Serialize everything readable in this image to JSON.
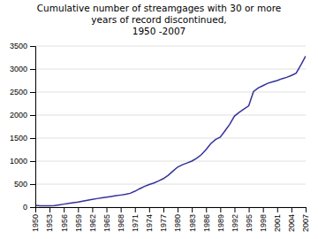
{
  "chart_data": {
    "type": "line",
    "title": "Cumulative number of streamgages with 30 or more\nyears of record discontinued,\n1950 -2007",
    "x": [
      1950,
      1951,
      1952,
      1953,
      1954,
      1955,
      1956,
      1957,
      1958,
      1959,
      1960,
      1961,
      1962,
      1963,
      1964,
      1965,
      1966,
      1967,
      1968,
      1969,
      1970,
      1971,
      1972,
      1973,
      1974,
      1975,
      1976,
      1977,
      1978,
      1979,
      1980,
      1981,
      1982,
      1983,
      1984,
      1985,
      1986,
      1987,
      1988,
      1989,
      1990,
      1991,
      1992,
      1993,
      1994,
      1995,
      1996,
      1997,
      1998,
      1999,
      2000,
      2001,
      2002,
      2003,
      2004,
      2005,
      2006,
      2007
    ],
    "values": [
      40,
      30,
      30,
      28,
      35,
      50,
      65,
      80,
      95,
      110,
      130,
      150,
      168,
      185,
      200,
      215,
      232,
      248,
      262,
      278,
      300,
      345,
      400,
      450,
      490,
      525,
      570,
      620,
      690,
      780,
      870,
      920,
      960,
      1000,
      1060,
      1140,
      1250,
      1380,
      1470,
      1520,
      1660,
      1800,
      1980,
      2060,
      2130,
      2200,
      2510,
      2590,
      2640,
      2690,
      2720,
      2750,
      2790,
      2820,
      2860,
      2910,
      3090,
      3280
    ],
    "color": "#33339a",
    "xlim": [
      1950,
      2007
    ],
    "xticks": [
      1950,
      1953,
      1956,
      1959,
      1962,
      1965,
      1968,
      1971,
      1974,
      1977,
      1980,
      1983,
      1986,
      1989,
      1992,
      1995,
      1998,
      2001,
      2004,
      2007
    ],
    "ylim": [
      0,
      3500
    ],
    "yticks": [
      0,
      500,
      1000,
      1500,
      2000,
      2500,
      3000,
      3500
    ],
    "grid": true
  }
}
